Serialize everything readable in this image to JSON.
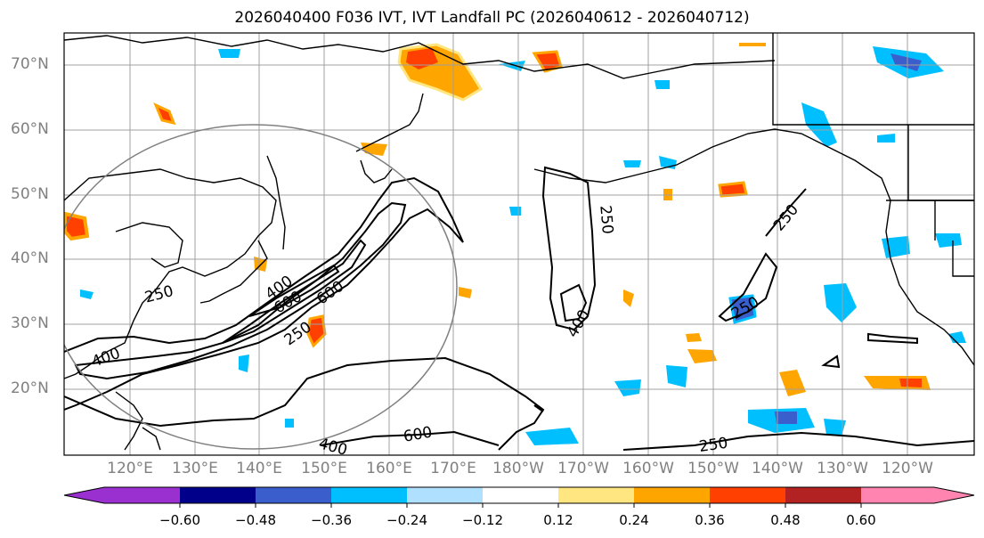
{
  "title": "2026040400 F036 IVT, IVT Landfall PC (2026040612 - 2026040712)",
  "lat_labels": [
    "70°N",
    "60°N",
    "50°N",
    "40°N",
    "30°N",
    "20°N"
  ],
  "lon_labels": [
    "120°E",
    "130°E",
    "140°E",
    "150°E",
    "160°E",
    "170°E",
    "180°W",
    "170°W",
    "160°W",
    "150°W",
    "140°W",
    "130°W",
    "120°W"
  ],
  "contour_labels": [
    "250",
    "250",
    "250",
    "250",
    "250",
    "250",
    "400",
    "400",
    "400",
    "400",
    "600",
    "600",
    "600"
  ],
  "colorbar": {
    "ticks": [
      "−0.60",
      "−0.48",
      "−0.36",
      "−0.24",
      "−0.12",
      "0.12",
      "0.24",
      "0.36",
      "0.48",
      "0.60"
    ],
    "colors": [
      "#9b30d0",
      "#00008b",
      "#3a5fcd",
      "#00bfff",
      "#b0e0ff",
      "#ffffff",
      "#ffe680",
      "#ffa500",
      "#ff4000",
      "#b22222",
      "#ff85b0"
    ]
  },
  "colors": {
    "land_outline": "#000000",
    "grid": "#a0a0a0",
    "circle": "#808080",
    "axis_label": "#808080"
  }
}
